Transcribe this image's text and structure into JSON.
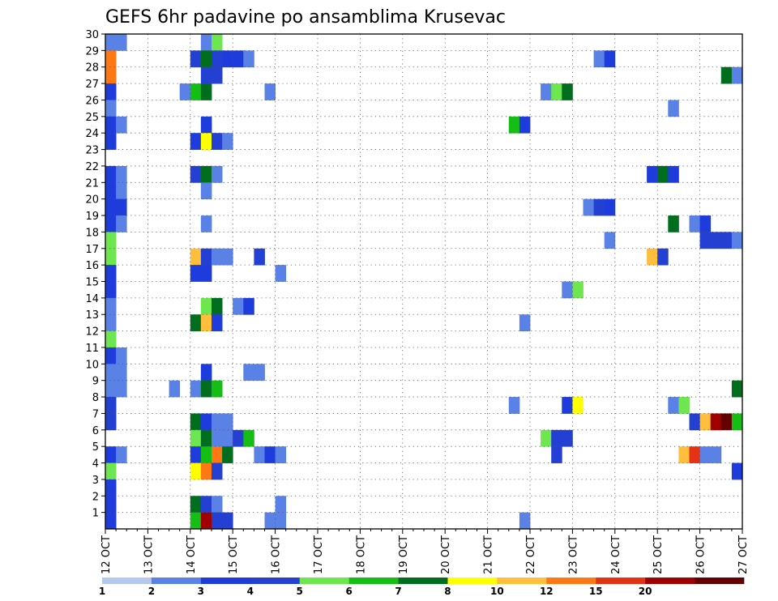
{
  "chart_data": {
    "type": "heatmap",
    "title": "GEFS 6hr padavine po ansamblima Krusevac",
    "xlabel": "",
    "ylabel": "",
    "x_ticks": [
      "12 OCT",
      "13 OCT",
      "14 OCT",
      "15 OCT",
      "16 OCT",
      "17 OCT",
      "18 OCT",
      "19 OCT",
      "20 OCT",
      "21 OCT",
      "22 OCT",
      "23 OCT",
      "24 OCT",
      "25 OCT",
      "26 OCT",
      "27 OCT"
    ],
    "y_ticks": [
      "1",
      "2",
      "3",
      "4",
      "5",
      "6",
      "7",
      "8",
      "9",
      "10",
      "11",
      "12",
      "13",
      "14",
      "15",
      "16",
      "17",
      "18",
      "19",
      "20",
      "21",
      "22",
      "23",
      "24",
      "25",
      "26",
      "27",
      "28",
      "29",
      "30"
    ],
    "grid": true,
    "legend": {
      "position": "bottom",
      "labels": [
        "1",
        "2",
        "3",
        "4",
        "5",
        "6",
        "7",
        "8",
        "10",
        "12",
        "15",
        "20"
      ],
      "colors": [
        "#b4c8f0",
        "#5a82e6",
        "#1e3cdc",
        "#2340d2",
        "#6ee650",
        "#14be14",
        "#006e1e",
        "#ffff00",
        "#ffbe3c",
        "#ff7814",
        "#e63214",
        "#a00000",
        "#640000"
      ]
    },
    "note_x_units": "6-hour steps from 12 OCT 00Z (4 per day)",
    "cells": [
      {
        "x": 0,
        "y": 30,
        "c": 1
      },
      {
        "x": 1,
        "y": 30,
        "c": 1
      },
      {
        "x": 9,
        "y": 30,
        "c": 1
      },
      {
        "x": 10,
        "y": 30,
        "c": 4
      },
      {
        "x": 0,
        "y": 29,
        "c": 9
      },
      {
        "x": 8,
        "y": 29,
        "c": 3
      },
      {
        "x": 9,
        "y": 29,
        "c": 6
      },
      {
        "x": 10,
        "y": 29,
        "c": 3
      },
      {
        "x": 11,
        "y": 29,
        "c": 2
      },
      {
        "x": 12,
        "y": 29,
        "c": 2
      },
      {
        "x": 13,
        "y": 29,
        "c": 1
      },
      {
        "x": 46,
        "y": 29,
        "c": 1
      },
      {
        "x": 47,
        "y": 29,
        "c": 2
      },
      {
        "x": 0,
        "y": 28,
        "c": 9
      },
      {
        "x": 9,
        "y": 28,
        "c": 3
      },
      {
        "x": 10,
        "y": 28,
        "c": 3
      },
      {
        "x": 58,
        "y": 28,
        "c": 6
      },
      {
        "x": 59,
        "y": 28,
        "c": 1
      },
      {
        "x": 0,
        "y": 27,
        "c": 2
      },
      {
        "x": 7,
        "y": 27,
        "c": 1
      },
      {
        "x": 8,
        "y": 27,
        "c": 5
      },
      {
        "x": 9,
        "y": 27,
        "c": 6
      },
      {
        "x": 15,
        "y": 27,
        "c": 1
      },
      {
        "x": 41,
        "y": 27,
        "c": 1
      },
      {
        "x": 42,
        "y": 27,
        "c": 4
      },
      {
        "x": 43,
        "y": 27,
        "c": 6
      },
      {
        "x": 0,
        "y": 26,
        "c": 1
      },
      {
        "x": 53,
        "y": 26,
        "c": 1
      },
      {
        "x": 0,
        "y": 25,
        "c": 2
      },
      {
        "x": 1,
        "y": 25,
        "c": 1
      },
      {
        "x": 9,
        "y": 25,
        "c": 2
      },
      {
        "x": 38,
        "y": 25,
        "c": 5
      },
      {
        "x": 39,
        "y": 25,
        "c": 2
      },
      {
        "x": 0,
        "y": 24,
        "c": 2
      },
      {
        "x": 8,
        "y": 24,
        "c": 2
      },
      {
        "x": 9,
        "y": 24,
        "c": 7
      },
      {
        "x": 10,
        "y": 24,
        "c": 3
      },
      {
        "x": 11,
        "y": 24,
        "c": 1
      },
      {
        "x": 0,
        "y": 22,
        "c": 2
      },
      {
        "x": 1,
        "y": 22,
        "c": 1
      },
      {
        "x": 8,
        "y": 22,
        "c": 3
      },
      {
        "x": 9,
        "y": 22,
        "c": 6
      },
      {
        "x": 10,
        "y": 22,
        "c": 1
      },
      {
        "x": 51,
        "y": 22,
        "c": 2
      },
      {
        "x": 52,
        "y": 22,
        "c": 6
      },
      {
        "x": 53,
        "y": 22,
        "c": 2
      },
      {
        "x": 0,
        "y": 21,
        "c": 2
      },
      {
        "x": 1,
        "y": 21,
        "c": 1
      },
      {
        "x": 9,
        "y": 21,
        "c": 1
      },
      {
        "x": 0,
        "y": 20,
        "c": 2
      },
      {
        "x": 1,
        "y": 20,
        "c": 2
      },
      {
        "x": 45,
        "y": 20,
        "c": 1
      },
      {
        "x": 46,
        "y": 20,
        "c": 3
      },
      {
        "x": 47,
        "y": 20,
        "c": 2
      },
      {
        "x": 0,
        "y": 19,
        "c": 2
      },
      {
        "x": 1,
        "y": 19,
        "c": 1
      },
      {
        "x": 9,
        "y": 19,
        "c": 1
      },
      {
        "x": 53,
        "y": 19,
        "c": 6
      },
      {
        "x": 55,
        "y": 19,
        "c": 1
      },
      {
        "x": 56,
        "y": 19,
        "c": 2
      },
      {
        "x": 0,
        "y": 18,
        "c": 4
      },
      {
        "x": 47,
        "y": 18,
        "c": 1
      },
      {
        "x": 56,
        "y": 18,
        "c": 3
      },
      {
        "x": 57,
        "y": 18,
        "c": 3
      },
      {
        "x": 58,
        "y": 18,
        "c": 3
      },
      {
        "x": 59,
        "y": 18,
        "c": 1
      },
      {
        "x": 0,
        "y": 17,
        "c": 4
      },
      {
        "x": 8,
        "y": 17,
        "c": 8
      },
      {
        "x": 9,
        "y": 17,
        "c": 3
      },
      {
        "x": 10,
        "y": 17,
        "c": 1
      },
      {
        "x": 11,
        "y": 17,
        "c": 1
      },
      {
        "x": 14,
        "y": 17,
        "c": 3
      },
      {
        "x": 51,
        "y": 17,
        "c": 8
      },
      {
        "x": 52,
        "y": 17,
        "c": 3
      },
      {
        "x": 0,
        "y": 16,
        "c": 2
      },
      {
        "x": 8,
        "y": 16,
        "c": 2
      },
      {
        "x": 9,
        "y": 16,
        "c": 2
      },
      {
        "x": 16,
        "y": 16,
        "c": 1
      },
      {
        "x": 0,
        "y": 15,
        "c": 2
      },
      {
        "x": 43,
        "y": 15,
        "c": 1
      },
      {
        "x": 44,
        "y": 15,
        "c": 4
      },
      {
        "x": 0,
        "y": 14,
        "c": 1
      },
      {
        "x": 9,
        "y": 14,
        "c": 4
      },
      {
        "x": 10,
        "y": 14,
        "c": 6
      },
      {
        "x": 12,
        "y": 14,
        "c": 1
      },
      {
        "x": 13,
        "y": 14,
        "c": 2
      },
      {
        "x": 0,
        "y": 13,
        "c": 1
      },
      {
        "x": 8,
        "y": 13,
        "c": 6
      },
      {
        "x": 9,
        "y": 13,
        "c": 8
      },
      {
        "x": 10,
        "y": 13,
        "c": 2
      },
      {
        "x": 39,
        "y": 13,
        "c": 1
      },
      {
        "x": 0,
        "y": 12,
        "c": 4
      },
      {
        "x": 0,
        "y": 11,
        "c": 2
      },
      {
        "x": 1,
        "y": 11,
        "c": 1
      },
      {
        "x": 0,
        "y": 10,
        "c": 1
      },
      {
        "x": 1,
        "y": 10,
        "c": 1
      },
      {
        "x": 9,
        "y": 10,
        "c": 2
      },
      {
        "x": 13,
        "y": 10,
        "c": 1
      },
      {
        "x": 14,
        "y": 10,
        "c": 1
      },
      {
        "x": 0,
        "y": 9,
        "c": 1
      },
      {
        "x": 1,
        "y": 9,
        "c": 1
      },
      {
        "x": 6,
        "y": 9,
        "c": 1
      },
      {
        "x": 8,
        "y": 9,
        "c": 1
      },
      {
        "x": 9,
        "y": 9,
        "c": 6
      },
      {
        "x": 10,
        "y": 9,
        "c": 5
      },
      {
        "x": 59,
        "y": 9,
        "c": 6
      },
      {
        "x": 0,
        "y": 8,
        "c": 3
      },
      {
        "x": 38,
        "y": 8,
        "c": 1
      },
      {
        "x": 43,
        "y": 8,
        "c": 2
      },
      {
        "x": 44,
        "y": 8,
        "c": 7
      },
      {
        "x": 53,
        "y": 8,
        "c": 1
      },
      {
        "x": 54,
        "y": 8,
        "c": 4
      },
      {
        "x": 0,
        "y": 7,
        "c": 3
      },
      {
        "x": 8,
        "y": 7,
        "c": 6
      },
      {
        "x": 9,
        "y": 7,
        "c": 2
      },
      {
        "x": 10,
        "y": 7,
        "c": 1
      },
      {
        "x": 11,
        "y": 7,
        "c": 1
      },
      {
        "x": 55,
        "y": 7,
        "c": 3
      },
      {
        "x": 56,
        "y": 7,
        "c": 8
      },
      {
        "x": 57,
        "y": 7,
        "c": 11
      },
      {
        "x": 58,
        "y": 7,
        "c": 12
      },
      {
        "x": 59,
        "y": 7,
        "c": 5
      },
      {
        "x": 8,
        "y": 6,
        "c": 4
      },
      {
        "x": 9,
        "y": 6,
        "c": 6
      },
      {
        "x": 10,
        "y": 6,
        "c": 1
      },
      {
        "x": 11,
        "y": 6,
        "c": 1
      },
      {
        "x": 12,
        "y": 6,
        "c": 3
      },
      {
        "x": 13,
        "y": 6,
        "c": 5
      },
      {
        "x": 41,
        "y": 6,
        "c": 4
      },
      {
        "x": 42,
        "y": 6,
        "c": 3
      },
      {
        "x": 43,
        "y": 6,
        "c": 3
      },
      {
        "x": 0,
        "y": 5,
        "c": 2
      },
      {
        "x": 1,
        "y": 5,
        "c": 1
      },
      {
        "x": 8,
        "y": 5,
        "c": 2
      },
      {
        "x": 9,
        "y": 5,
        "c": 5
      },
      {
        "x": 10,
        "y": 5,
        "c": 9
      },
      {
        "x": 11,
        "y": 5,
        "c": 6
      },
      {
        "x": 14,
        "y": 5,
        "c": 1
      },
      {
        "x": 15,
        "y": 5,
        "c": 2
      },
      {
        "x": 16,
        "y": 5,
        "c": 1
      },
      {
        "x": 42,
        "y": 5,
        "c": 3
      },
      {
        "x": 54,
        "y": 5,
        "c": 8
      },
      {
        "x": 55,
        "y": 5,
        "c": 10
      },
      {
        "x": 56,
        "y": 5,
        "c": 1
      },
      {
        "x": 57,
        "y": 5,
        "c": 1
      },
      {
        "x": 0,
        "y": 4,
        "c": 4
      },
      {
        "x": 8,
        "y": 4,
        "c": 7
      },
      {
        "x": 9,
        "y": 4,
        "c": 9
      },
      {
        "x": 10,
        "y": 4,
        "c": 3
      },
      {
        "x": 59,
        "y": 4,
        "c": 2
      },
      {
        "x": 0,
        "y": 3,
        "c": 2
      },
      {
        "x": 0,
        "y": 2,
        "c": 2
      },
      {
        "x": 8,
        "y": 2,
        "c": 6
      },
      {
        "x": 9,
        "y": 2,
        "c": 3
      },
      {
        "x": 10,
        "y": 2,
        "c": 1
      },
      {
        "x": 16,
        "y": 2,
        "c": 1
      },
      {
        "x": 0,
        "y": 1,
        "c": 2
      },
      {
        "x": 8,
        "y": 1,
        "c": 5
      },
      {
        "x": 9,
        "y": 1,
        "c": 11
      },
      {
        "x": 10,
        "y": 1,
        "c": 3
      },
      {
        "x": 11,
        "y": 1,
        "c": 3
      },
      {
        "x": 15,
        "y": 1,
        "c": 1
      },
      {
        "x": 16,
        "y": 1,
        "c": 1
      },
      {
        "x": 39,
        "y": 1,
        "c": 1
      }
    ]
  }
}
